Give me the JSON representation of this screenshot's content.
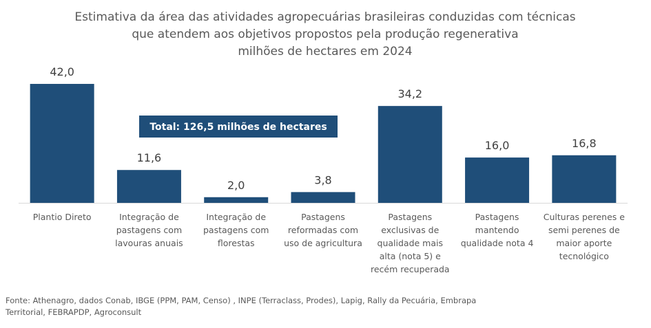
{
  "chart_data": {
    "type": "bar",
    "title": [
      "Estimativa da área das atividades agropecuárias brasileiras conduzidas com técnicas",
      "que atendem aos objetivos propostos pela produção regenerativa",
      "milhões de hectares em 2024"
    ],
    "categories": [
      [
        "Plantio Direto"
      ],
      [
        "Integração de",
        "pastagens com",
        "lavouras anuais"
      ],
      [
        "Integração de",
        "pastagens com",
        "florestas"
      ],
      [
        "Pastagens",
        "reformadas com",
        "uso de agricultura"
      ],
      [
        "Pastagens",
        "exclusivas de",
        "qualidade mais",
        "alta (nota 5) e",
        "recém recuperada"
      ],
      [
        "Pastagens",
        "mantendo",
        "qualidade nota 4"
      ],
      [
        "Culturas perenes e",
        "semi perenes de",
        "maior aporte",
        "tecnológico"
      ]
    ],
    "values": [
      42.0,
      11.6,
      2.0,
      3.8,
      34.2,
      16.0,
      16.8
    ],
    "value_labels": [
      "42,0",
      "11,6",
      "2,0",
      "3,8",
      "34,2",
      "16,0",
      "16,8"
    ],
    "ylim": [
      0,
      42.0
    ],
    "bar_color": "#1F4E79",
    "grid": false,
    "annotation": "Total: 126,5 milhões de hectares",
    "annotation_color": "#1F4E79",
    "source": [
      "Fonte: Athenagro, dados Conab, IBGE (PPM, PAM, Censo) , INPE (Terraclass, Prodes),  Lapig, Rally da Pecuária,  Embrapa",
      "Territorial, FEBRAPDP, Agroconsult"
    ]
  }
}
